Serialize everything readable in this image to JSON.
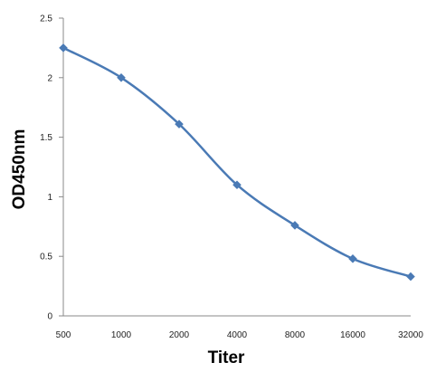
{
  "chart_data": {
    "type": "line",
    "title": "",
    "xlabel": "Titer",
    "ylabel": "OD450nm",
    "categories": [
      "500",
      "1000",
      "2000",
      "4000",
      "8000",
      "16000",
      "32000"
    ],
    "yticks": [
      "0",
      "0.5",
      "1",
      "1.5",
      "2",
      "2.5"
    ],
    "ylim": [
      0,
      2.5
    ],
    "grid": false,
    "series": [
      {
        "values": [
          2.25,
          2.0,
          1.61,
          1.1,
          0.76,
          0.48,
          0.33
        ],
        "color": "#4a7ab5"
      }
    ]
  }
}
